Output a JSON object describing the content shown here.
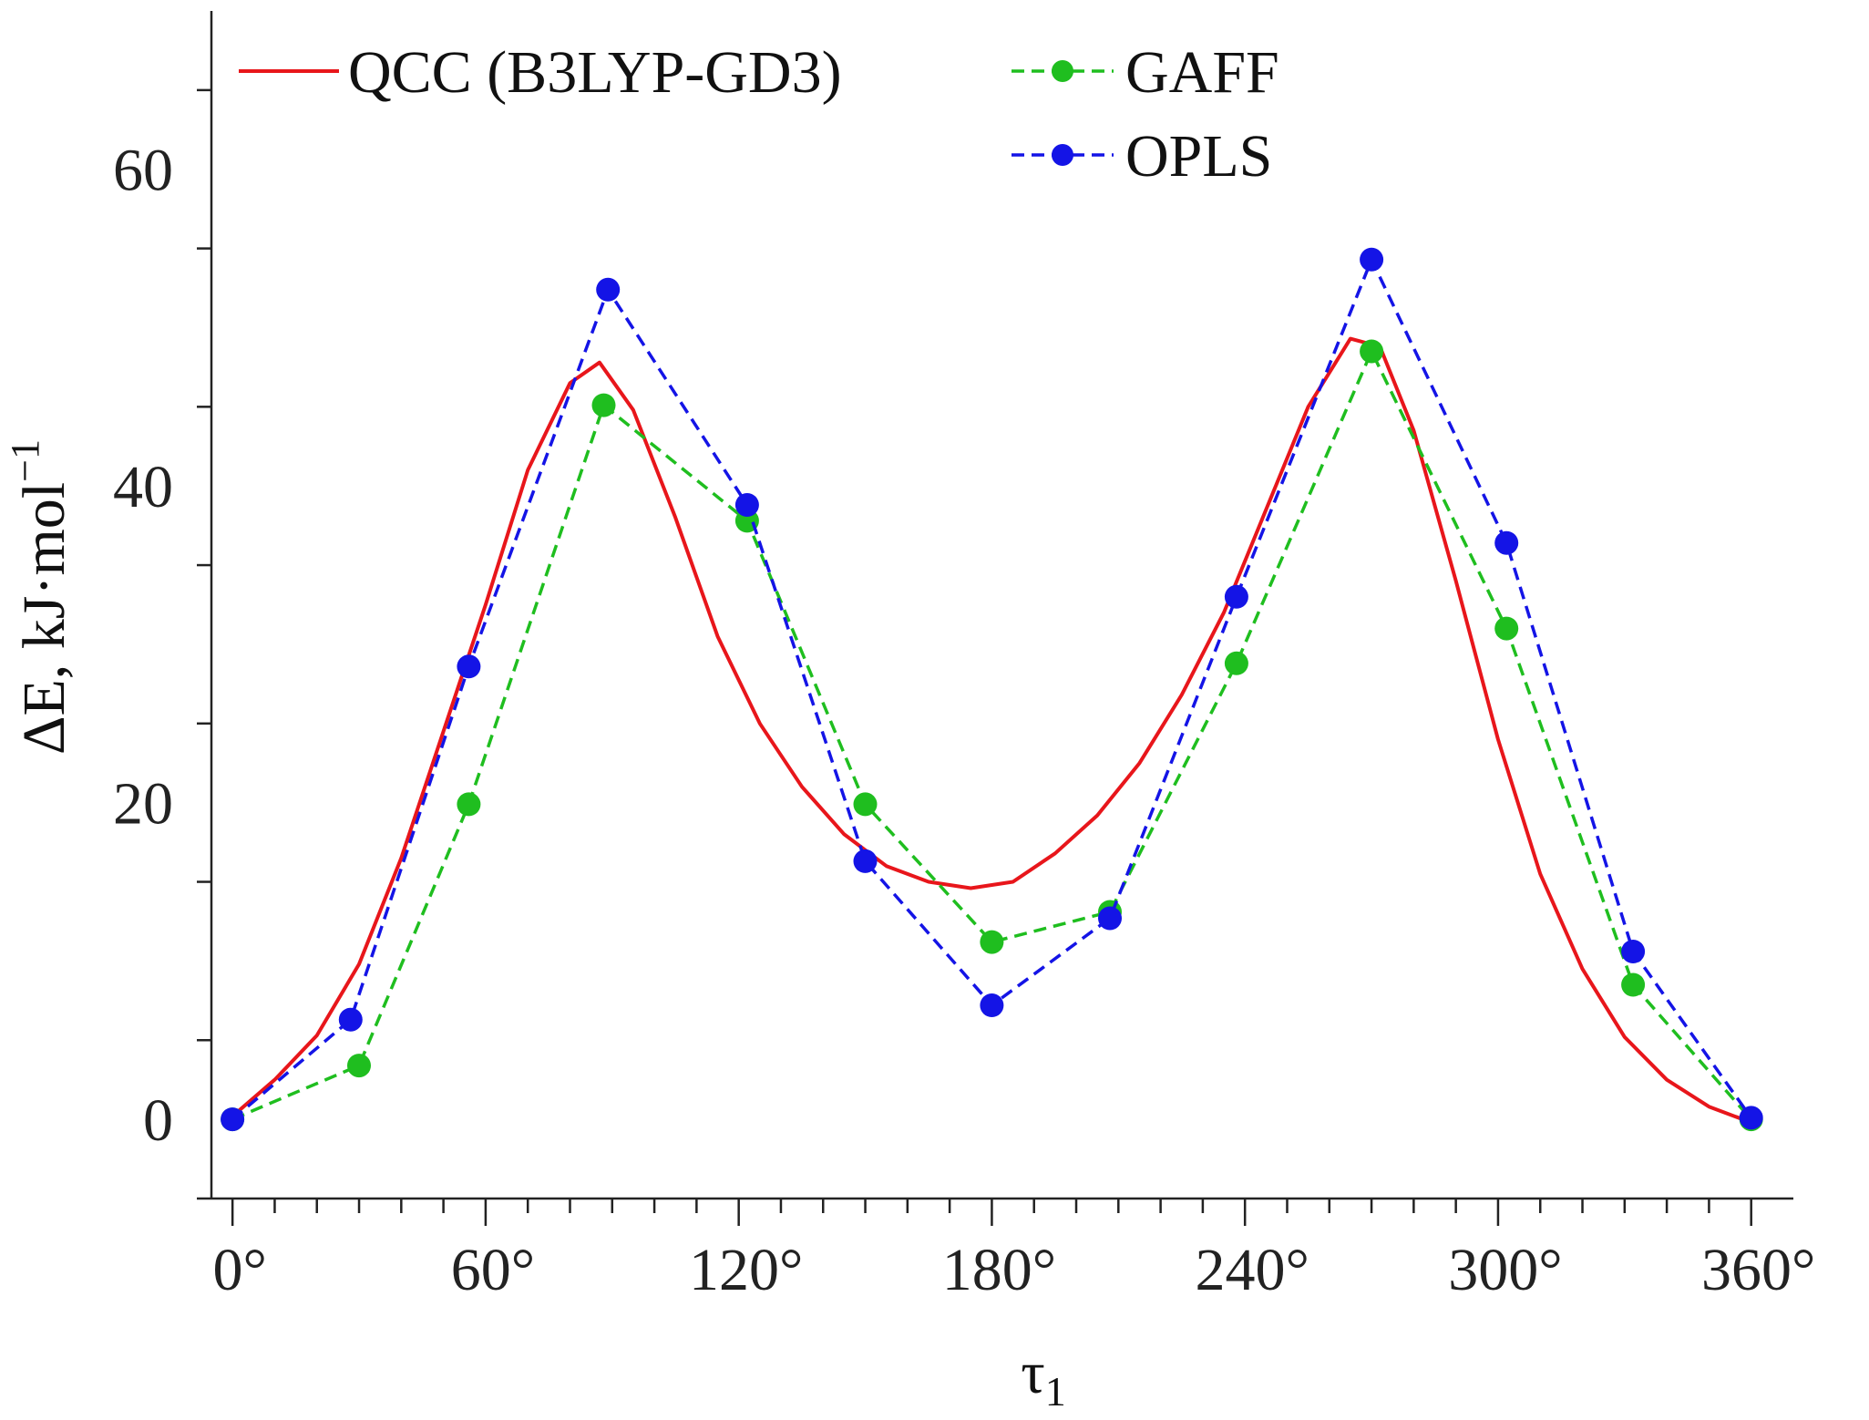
{
  "chart_data": {
    "type": "line",
    "title": "",
    "xlabel": "τ",
    "xlabel_subscript": "1",
    "ylabel": "ΔE, kJ·mol",
    "ylabel_superscript": "−1",
    "xlim": [
      -5,
      370
    ],
    "ylim": [
      -5,
      70
    ],
    "x_ticks": [
      0,
      60,
      120,
      180,
      240,
      300,
      360
    ],
    "x_tick_labels": [
      "0°",
      "60°",
      "120°",
      "180°",
      "240°",
      "300°",
      "360°"
    ],
    "y_ticks": [
      0,
      20,
      40,
      60
    ],
    "y_tick_labels": [
      "0",
      "20",
      "40",
      "60"
    ],
    "legend_position": "top",
    "series": [
      {
        "name": "QCC (B3LYP-GD3)",
        "color": "#e8161b",
        "style": "solid",
        "marker": "none",
        "x": [
          0,
          10,
          20,
          30,
          40,
          50,
          60,
          70,
          80,
          87,
          95,
          105,
          115,
          125,
          135,
          145,
          155,
          165,
          175,
          185,
          195,
          205,
          215,
          225,
          235,
          245,
          255,
          265,
          272,
          280,
          290,
          300,
          310,
          320,
          330,
          340,
          350,
          360
        ],
        "y": [
          0.2,
          2.5,
          5.3,
          9.8,
          16.5,
          24.5,
          32.5,
          41.0,
          46.5,
          47.8,
          44.8,
          38.0,
          30.5,
          25.0,
          21.0,
          18.0,
          16.0,
          15.0,
          14.6,
          15.0,
          16.8,
          19.2,
          22.5,
          26.8,
          32.0,
          38.5,
          45.0,
          49.3,
          48.8,
          43.5,
          34.0,
          24.0,
          15.5,
          9.5,
          5.2,
          2.5,
          0.8,
          -0.2
        ]
      },
      {
        "name": "GAFF",
        "color": "#1fbe1f",
        "style": "dashed",
        "marker": "circle",
        "x": [
          0,
          30,
          56,
          88,
          122,
          150,
          180,
          208,
          238,
          270,
          302,
          332,
          360
        ],
        "y": [
          0,
          3.4,
          19.9,
          45.1,
          37.8,
          19.9,
          11.2,
          13.1,
          28.8,
          48.5,
          31.0,
          8.5,
          0
        ]
      },
      {
        "name": "OPLS",
        "color": "#1414e6",
        "style": "dashed",
        "marker": "circle",
        "x": [
          0,
          28,
          56,
          89,
          122,
          150,
          180,
          208,
          238,
          270,
          302,
          332,
          360
        ],
        "y": [
          0,
          6.3,
          28.6,
          52.4,
          38.8,
          16.3,
          7.2,
          12.7,
          33.0,
          54.3,
          36.4,
          10.6,
          0.1
        ]
      }
    ]
  }
}
